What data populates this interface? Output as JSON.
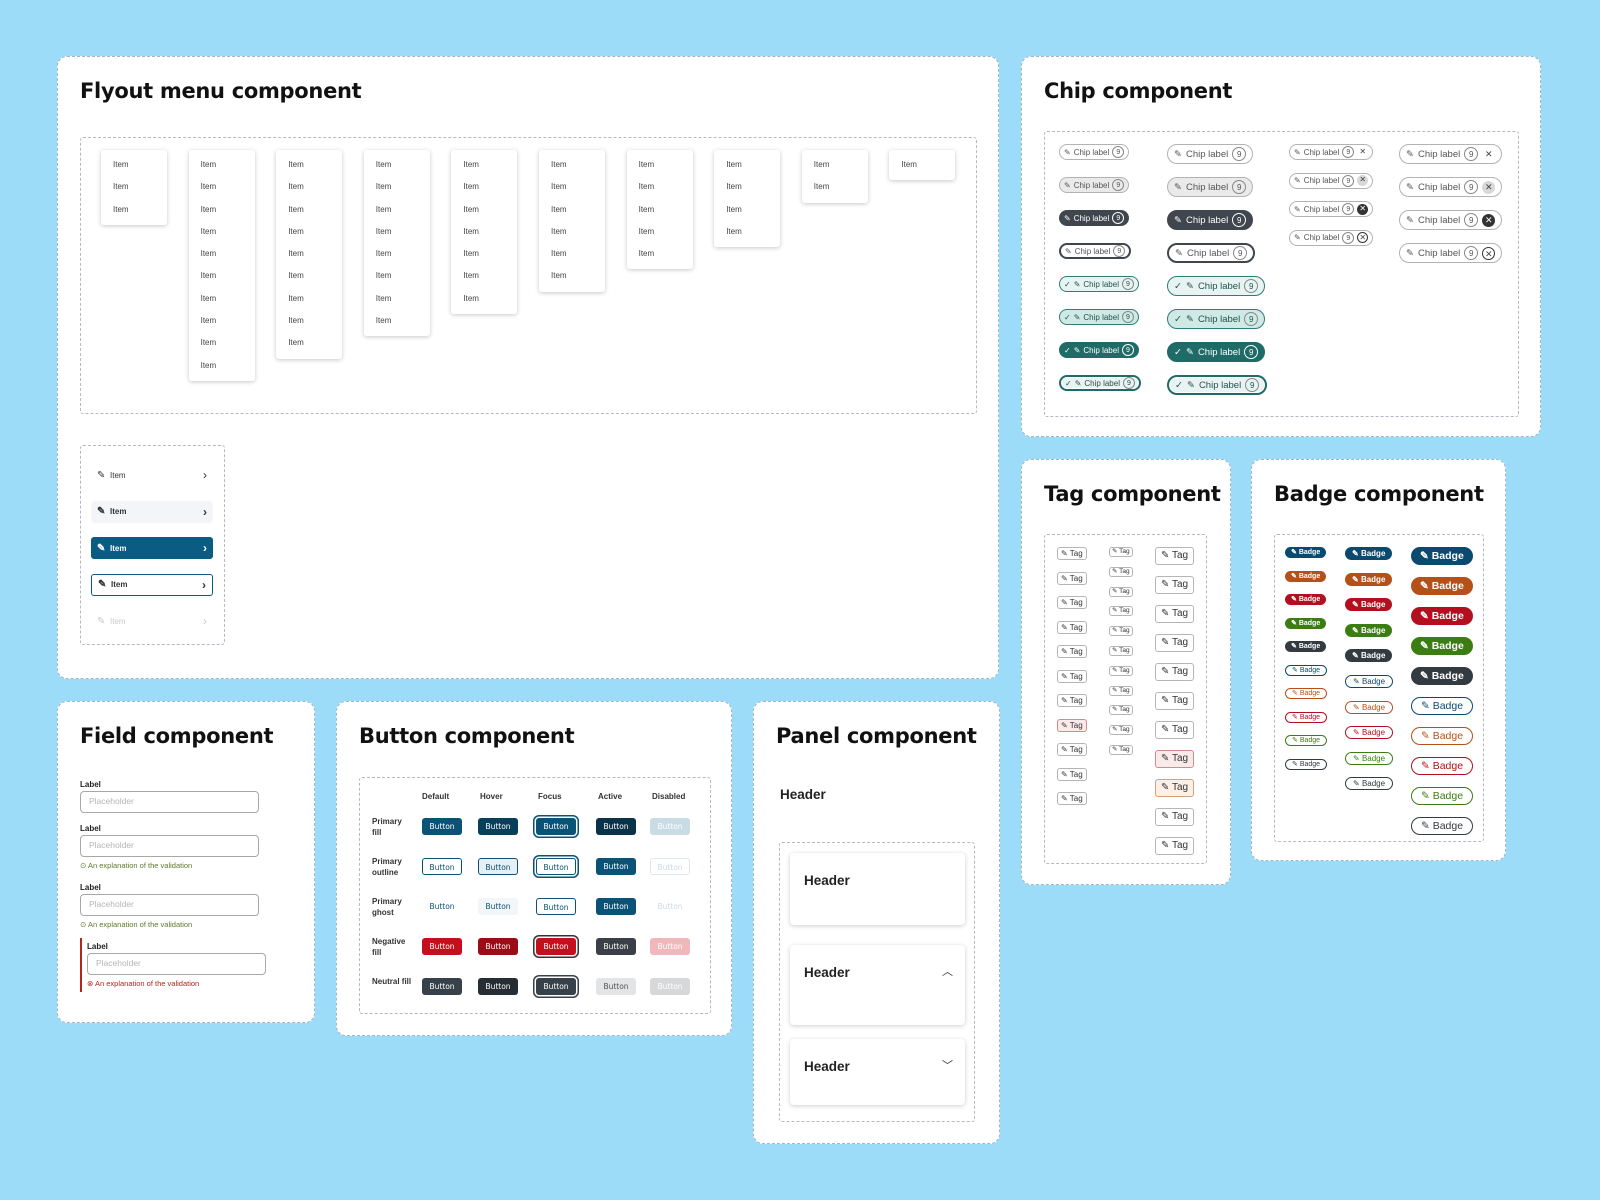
{
  "cards": {
    "flyout": "Flyout menu component",
    "chip": "Chip component",
    "tag": "Tag component",
    "badge": "Badge component",
    "field": "Field component",
    "button": "Button component",
    "panel": "Panel component"
  },
  "flyout": {
    "item_label": "Item",
    "menu_item_counts": [
      3,
      10,
      9,
      8,
      7,
      6,
      5,
      4,
      2,
      1
    ],
    "menu_rows": [
      {
        "label": "Item",
        "state": "default"
      },
      {
        "label": "Item",
        "state": "hover"
      },
      {
        "label": "Item",
        "state": "active"
      },
      {
        "label": "Item",
        "state": "focus"
      },
      {
        "label": "Item",
        "state": "disabled"
      }
    ]
  },
  "chip": {
    "label": "Chip label",
    "count": "9",
    "states": [
      "default",
      "hover",
      "active",
      "focus"
    ]
  },
  "tag": {
    "label": "Tag",
    "col1_count": 11,
    "col2_count": 11,
    "col3_count": 11
  },
  "badge": {
    "label": "Badge",
    "colors": {
      "blue": "#0a4a6e",
      "orange": "#b5501a",
      "red": "#b30f1e",
      "green": "#3b7d12",
      "dark": "#333a40"
    }
  },
  "field": {
    "label": "Label",
    "placeholder": "Placeholder",
    "hint": "An explanation of the validation",
    "error_color": "#b3261e"
  },
  "button": {
    "label": "Button",
    "states": [
      "Default",
      "Hover",
      "Focus",
      "Active",
      "Disabled"
    ],
    "rows": [
      {
        "name": "Primary fill"
      },
      {
        "name": "Primary outline"
      },
      {
        "name": "Primary ghost"
      },
      {
        "name": "Negative fill"
      },
      {
        "name": "Neutral fill"
      }
    ]
  },
  "panel": {
    "header": "Header",
    "panels": [
      {
        "title": "Header",
        "icon": ""
      },
      {
        "title": "Header",
        "icon": "chevron-up-icon"
      },
      {
        "title": "Header",
        "icon": "chevron-down-icon"
      }
    ]
  }
}
